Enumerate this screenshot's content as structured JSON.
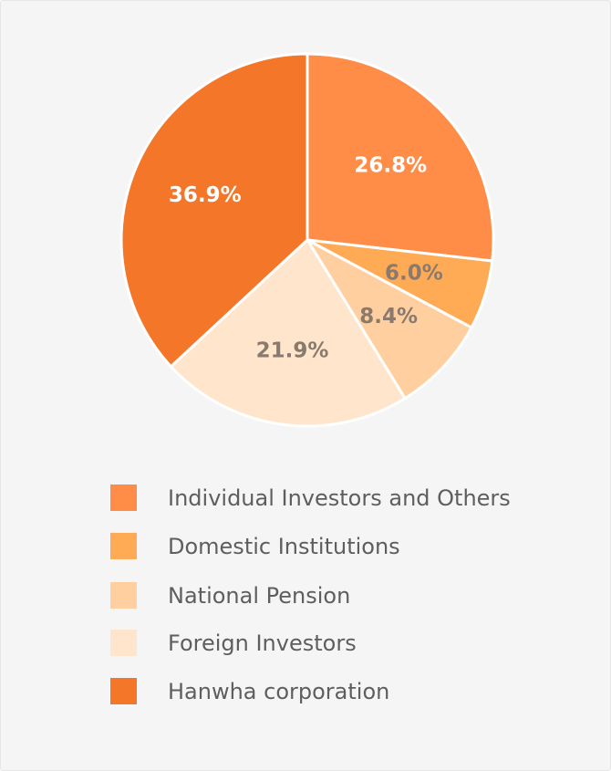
{
  "chart_data": {
    "type": "pie",
    "title": "",
    "start_angle_deg": 0,
    "direction": "clockwise",
    "slices": [
      {
        "label": "Individual Investors and Others",
        "value": 26.8,
        "value_label": "26.8%",
        "color": "#ff8c47",
        "label_color": "#ffffff"
      },
      {
        "label": "Domestic Institutions",
        "value": 6.0,
        "value_label": "6.0%",
        "color": "#ffaa55",
        "label_color": "#8a7a6e"
      },
      {
        "label": "National Pension",
        "value": 8.4,
        "value_label": "8.4%",
        "color": "#ffcf9f",
        "label_color": "#8a7a6e"
      },
      {
        "label": "Foreign Investors",
        "value": 21.9,
        "value_label": "21.9%",
        "color": "#ffe5cc",
        "label_color": "#8a7a6e"
      },
      {
        "label": "Hanwha corporation",
        "value": 36.9,
        "value_label": "36.9%",
        "color": "#f47628",
        "label_color": "#ffffff"
      }
    ],
    "legend": "bottom"
  }
}
